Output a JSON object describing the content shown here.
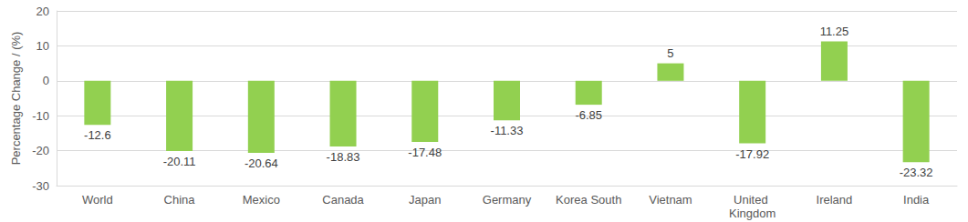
{
  "chart_data": {
    "type": "bar",
    "y_label": "Percentage Change / (%)",
    "categories": [
      "World",
      "China",
      "Mexico",
      "Canada",
      "Japan",
      "Germany",
      "Korea South",
      "Vietnam",
      "United Kingdom",
      "Ireland",
      "India"
    ],
    "values": [
      -12.6,
      -20.11,
      -20.64,
      -18.83,
      -17.48,
      -11.33,
      -6.85,
      5,
      -17.92,
      11.25,
      -23.32
    ],
    "color": "#92D050",
    "ylim": [
      -30,
      20
    ],
    "yticks": [
      -30,
      -20,
      -10,
      0,
      10,
      20
    ],
    "grid": true,
    "data_labels": true
  }
}
